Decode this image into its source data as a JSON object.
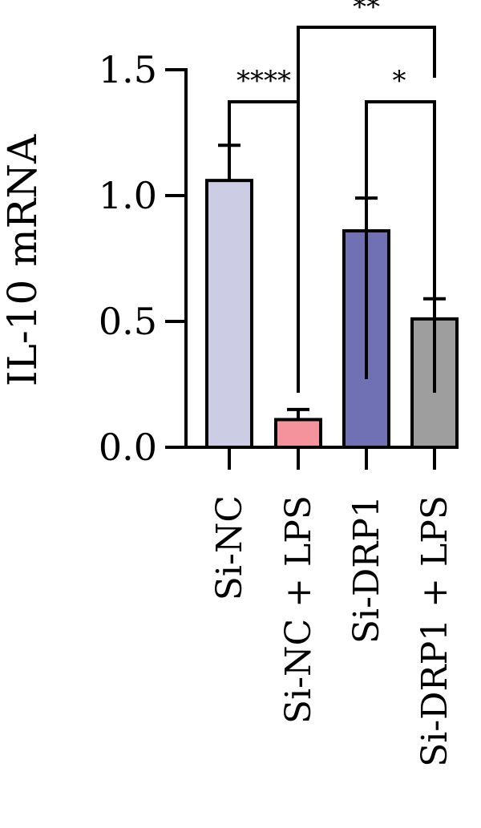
{
  "chart_data": {
    "type": "bar",
    "title": "",
    "xlabel": "",
    "ylabel": "IL-10 mRNA",
    "ylim": [
      0,
      1.5
    ],
    "yticks": [
      0.0,
      0.5,
      1.0,
      1.5
    ],
    "ytick_labels": [
      "0.0",
      "0.5",
      "1.0",
      "1.5"
    ],
    "grid": false,
    "categories": [
      "Si-NC",
      "Si-NC + LPS",
      "Si-DRP1",
      "Si-DRP1 + LPS"
    ],
    "values": [
      1.06,
      0.11,
      0.86,
      0.51
    ],
    "errors": [
      0.14,
      0.04,
      0.13,
      0.08
    ],
    "colors": [
      "#cccce4",
      "#f4939b",
      "#7070b4",
      "#9e9e9e"
    ],
    "significance": [
      {
        "from": 0,
        "to": 1,
        "label": "****"
      },
      {
        "from": 2,
        "to": 3,
        "label": "*"
      },
      {
        "from": 1,
        "to": 3,
        "label": "**"
      }
    ]
  }
}
